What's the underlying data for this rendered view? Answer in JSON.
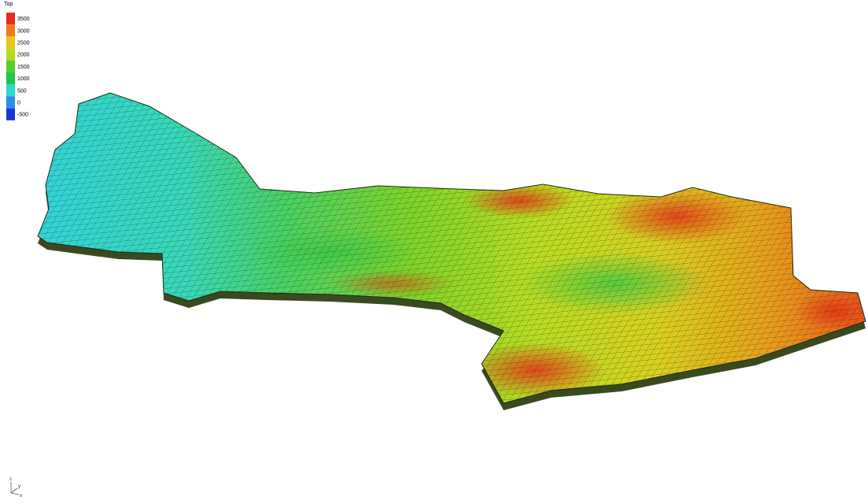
{
  "legend": {
    "title": "Top",
    "items": [
      {
        "label": "3500",
        "color": "#e62a1c"
      },
      {
        "label": "3000",
        "color": "#f07a18"
      },
      {
        "label": "2500",
        "color": "#ecc51e"
      },
      {
        "label": "2000",
        "color": "#b2dc1c"
      },
      {
        "label": "1500",
        "color": "#56d02a"
      },
      {
        "label": "1000",
        "color": "#22c64c"
      },
      {
        "label": "500",
        "color": "#2ed6d0"
      },
      {
        "label": "0",
        "color": "#2a8ee6"
      },
      {
        "label": "-500",
        "color": "#1a36d6"
      }
    ]
  },
  "axes": {
    "z": "z",
    "y": "y",
    "x": "x"
  }
}
